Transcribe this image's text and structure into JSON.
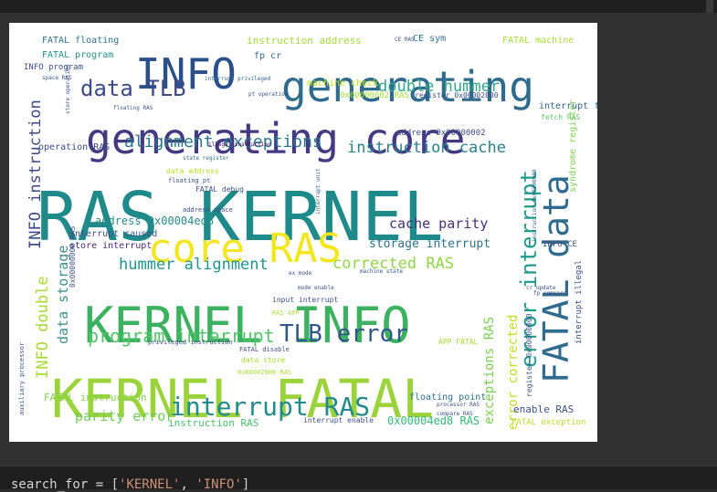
{
  "wordcloud": {
    "words": [
      {
        "text": "RAS KERNEL",
        "color": "#1f8a8a"
      },
      {
        "text": "KERNEL INFO",
        "color": "#3cb15f"
      },
      {
        "text": "KERNEL FATAL",
        "color": "#9bd33a"
      },
      {
        "text": "generating core",
        "color": "#443a83"
      },
      {
        "text": "generating",
        "color": "#2f6b8e"
      },
      {
        "text": "INFO",
        "color": "#2b4f8a"
      },
      {
        "text": "core RAS",
        "color": "#f3e51e"
      },
      {
        "text": "FATAL data",
        "color": "#2f6b8e"
      },
      {
        "text": "interrupt RAS",
        "color": "#238a8d"
      },
      {
        "text": "TLB error",
        "color": "#31578b"
      },
      {
        "text": "data TLB",
        "color": "#3d4a89"
      },
      {
        "text": "error interrupt",
        "color": "#1f9a8a"
      },
      {
        "text": "program interrupt",
        "color": "#52c569"
      },
      {
        "text": "alignment exceptions",
        "color": "#2a788e"
      },
      {
        "text": "double hummer",
        "color": "#33a68b"
      },
      {
        "text": "instruction cache",
        "color": "#26828e"
      },
      {
        "text": "hummer alignment",
        "color": "#1f958b"
      },
      {
        "text": "corrected RAS",
        "color": "#8fd744"
      },
      {
        "text": "cache parity",
        "color": "#472f7d"
      },
      {
        "text": "storage interrupt",
        "color": "#2c728e"
      },
      {
        "text": "parity error",
        "color": "#6ccd5a"
      },
      {
        "text": "INFO instruction",
        "color": "#3e4989"
      },
      {
        "text": "INFO double",
        "color": "#a8db34"
      },
      {
        "text": "data storage",
        "color": "#3f8f8a"
      },
      {
        "text": "error corrected",
        "color": "#c2df23"
      },
      {
        "text": "exceptions RAS",
        "color": "#7ad151"
      },
      {
        "text": "address 0x00004ed8",
        "color": "#2a8a8e"
      },
      {
        "text": "0x00004ed8 RAS",
        "color": "#35b779"
      },
      {
        "text": "instruction address",
        "color": "#a5db36"
      },
      {
        "text": "FATAL floating",
        "color": "#2c728e"
      },
      {
        "text": "FATAL program",
        "color": "#21918c"
      },
      {
        "text": "INFO program",
        "color": "#3b528b"
      },
      {
        "text": "FATAL machine",
        "color": "#a8db34"
      },
      {
        "text": "operation RAS",
        "color": "#3e4a89"
      },
      {
        "text": "interrupt fp",
        "color": "#31688e"
      },
      {
        "text": "fetch RAS",
        "color": "#5ec962"
      },
      {
        "text": "enable RAS",
        "color": "#3b528b"
      },
      {
        "text": "machine check",
        "color": "#c5e021"
      },
      {
        "text": "FATAL instruction",
        "color": "#7fd34e"
      },
      {
        "text": "instruction RAS",
        "color": "#48c16e"
      },
      {
        "text": "interrupt caused",
        "color": "#3b528b"
      },
      {
        "text": "store interrupt",
        "color": "#472c7a"
      },
      {
        "text": "floating point",
        "color": "#2c728e"
      },
      {
        "text": "FATAL exception",
        "color": "#b5de2b"
      },
      {
        "text": "CE sym",
        "color": "#2c728e"
      },
      {
        "text": "fp cr",
        "color": "#31688e"
      },
      {
        "text": "0x00000002 RAS",
        "color": "#a5db36"
      },
      {
        "text": "register 0x00002000",
        "color": "#3b528b"
      },
      {
        "text": "address 0x00000002",
        "color": "#3e4989"
      },
      {
        "text": "INFO CE",
        "color": "#3b528b"
      },
      {
        "text": "syndrome register",
        "color": "#7fd34e"
      },
      {
        "text": "interrupt illegal",
        "color": "#3b528b"
      },
      {
        "text": "APP FATAL",
        "color": "#a8db34"
      },
      {
        "text": "FATAL debug",
        "color": "#3b528b"
      },
      {
        "text": "address space",
        "color": "#3e4989"
      },
      {
        "text": "data address",
        "color": "#b5de2b"
      },
      {
        "text": "floating pt",
        "color": "#3b528b"
      },
      {
        "text": "instruction 0x00000000",
        "color": "#31688e"
      },
      {
        "text": "register 0x00000000",
        "color": "#3b528b"
      },
      {
        "text": "illegal instruction",
        "color": "#440154"
      },
      {
        "text": "state register",
        "color": "#2c728e"
      },
      {
        "text": "interrupt privileged",
        "color": "#31688e"
      },
      {
        "text": "privileged instruction",
        "color": "#3b528b"
      },
      {
        "text": "input interrupt",
        "color": "#3b528b"
      },
      {
        "text": "mode enable",
        "color": "#3b528b"
      },
      {
        "text": "ex mode",
        "color": "#3b528b"
      },
      {
        "text": "FATAL disable",
        "color": "#3b528b"
      },
      {
        "text": "data store",
        "color": "#a8db34"
      },
      {
        "text": "0x00002000 RAS",
        "color": "#a8db34"
      },
      {
        "text": "interrupt enable",
        "color": "#3b528b"
      },
      {
        "text": "processor RAS",
        "color": "#3b528b"
      },
      {
        "text": "compare RAS",
        "color": "#3b528b"
      },
      {
        "text": "RAS APP",
        "color": "#a8db34"
      },
      {
        "text": "machine state",
        "color": "#3b528b"
      },
      {
        "text": "auxiliary processor",
        "color": "#3b528b"
      },
      {
        "text": "store operation",
        "color": "#3b528b"
      },
      {
        "text": "0x00000000 RAS",
        "color": "#3b528b"
      },
      {
        "text": "fp compare",
        "color": "#3b528b"
      },
      {
        "text": "pt operation",
        "color": "#3b528b"
      },
      {
        "text": "space RAS",
        "color": "#3b528b"
      },
      {
        "text": "floating RAS",
        "color": "#3b528b"
      },
      {
        "text": "CE RAS",
        "color": "#3b528b"
      },
      {
        "text": "interrupt unit",
        "color": "#31688e"
      },
      {
        "text": "cr update",
        "color": "#3b528b"
      }
    ]
  },
  "code": {
    "prefix": "search_for = [",
    "s1": "'KERNEL'",
    "sep": ", ",
    "s2": "'INFO'",
    "suffix": "]"
  }
}
